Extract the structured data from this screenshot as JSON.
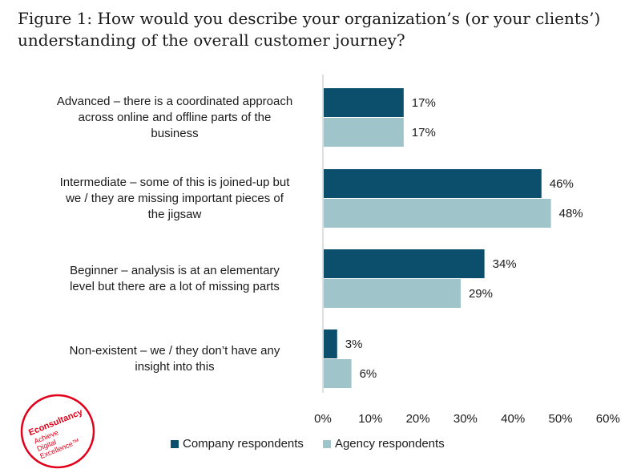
{
  "title": {
    "line1": "Figure 1: How would you describe your organization’s (or your clients’)",
    "line2": "understanding of the overall customer journey?"
  },
  "chart_data": {
    "type": "bar",
    "orientation": "horizontal",
    "categories": [
      [
        "Advanced – there is a coordinated approach",
        "across online and offline parts of the",
        "business"
      ],
      [
        "Intermediate – some of this is joined-up but",
        "we / they are missing important pieces of",
        "the jigsaw"
      ],
      [
        "Beginner – analysis is at an elementary",
        "level but there are a lot of missing parts"
      ],
      [
        "Non-existent – we / they don’t have any",
        "insight into this"
      ]
    ],
    "series": [
      {
        "name": "Company respondents",
        "values": [
          17,
          46,
          34,
          3
        ],
        "color": "#0b4f6c"
      },
      {
        "name": "Agency respondents",
        "values": [
          17,
          48,
          29,
          6
        ],
        "color": "#9fc4c9"
      }
    ],
    "data_labels": [
      [
        "17%",
        "46%",
        "34%",
        "3%"
      ],
      [
        "17%",
        "48%",
        "29%",
        "6%"
      ]
    ],
    "xticks": [
      "0%",
      "10%",
      "20%",
      "30%",
      "40%",
      "50%",
      "60%"
    ],
    "xlim": [
      0,
      60
    ],
    "grid": false,
    "legend_position": "bottom"
  },
  "logo": {
    "brand": "Econsultancy",
    "tagline": [
      "Achieve",
      "Digital",
      "Excellence™"
    ],
    "color": "#e2001a"
  }
}
